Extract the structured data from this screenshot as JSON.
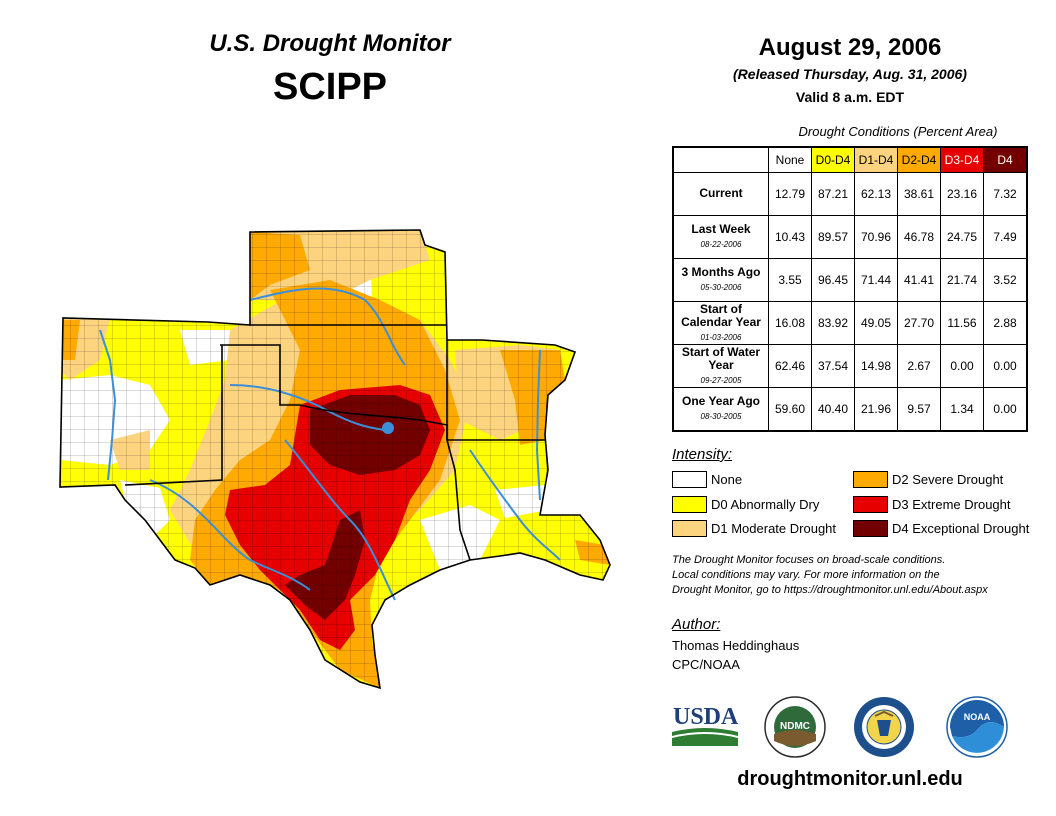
{
  "header": {
    "title": "U.S. Drought Monitor",
    "region": "SCIPP",
    "date": "August 29, 2006",
    "released": "(Released Thursday, Aug. 31, 2006)",
    "valid": "Valid 8 a.m. EDT"
  },
  "table": {
    "caption": "Drought Conditions (Percent Area)",
    "columns": [
      {
        "label": "None",
        "bg": "#ffffff",
        "fg": "#000000"
      },
      {
        "label": "D0-D4",
        "bg": "#ffff00",
        "fg": "#000000"
      },
      {
        "label": "D1-D4",
        "bg": "#fcd37f",
        "fg": "#000000"
      },
      {
        "label": "D2-D4",
        "bg": "#ffaa00",
        "fg": "#000000"
      },
      {
        "label": "D3-D4",
        "bg": "#e60000",
        "fg": "#ffffff"
      },
      {
        "label": "D4",
        "bg": "#730000",
        "fg": "#ffffff"
      }
    ],
    "rows": [
      {
        "label": "Current",
        "sub": "",
        "values": [
          "12.79",
          "87.21",
          "62.13",
          "38.61",
          "23.16",
          "7.32"
        ]
      },
      {
        "label": "Last Week",
        "sub": "08-22-2006",
        "values": [
          "10.43",
          "89.57",
          "70.96",
          "46.78",
          "24.75",
          "7.49"
        ]
      },
      {
        "label": "3 Months Ago",
        "sub": "05-30-2006",
        "values": [
          "3.55",
          "96.45",
          "71.44",
          "41.41",
          "21.74",
          "3.52"
        ]
      },
      {
        "label": "Start of Calendar Year",
        "sub": "01-03-2006",
        "values": [
          "16.08",
          "83.92",
          "49.05",
          "27.70",
          "11.56",
          "2.88"
        ]
      },
      {
        "label": "Start of Water Year",
        "sub": "09-27-2005",
        "values": [
          "62.46",
          "37.54",
          "14.98",
          "2.67",
          "0.00",
          "0.00"
        ]
      },
      {
        "label": "One Year Ago",
        "sub": "08-30-2005",
        "values": [
          "59.60",
          "40.40",
          "21.96",
          "9.57",
          "1.34",
          "0.00"
        ]
      }
    ]
  },
  "legend": {
    "title": "Intensity:",
    "items": [
      {
        "label": "None",
        "color": "#ffffff"
      },
      {
        "label": "D0 Abnormally Dry",
        "color": "#ffff00"
      },
      {
        "label": "D1 Moderate Drought",
        "color": "#fcd37f"
      },
      {
        "label": "D2 Severe Drought",
        "color": "#ffaa00"
      },
      {
        "label": "D3 Extreme Drought",
        "color": "#e60000"
      },
      {
        "label": "D4 Exceptional Drought",
        "color": "#730000"
      }
    ]
  },
  "note": {
    "line1": "The Drought Monitor focuses on broad-scale conditions.",
    "line2": "Local conditions may vary. For more information on the",
    "line3": "Drought Monitor, go to https://droughtmonitor.unl.edu/About.aspx"
  },
  "author": {
    "label": "Author:",
    "name": "Thomas Heddinghaus",
    "org": "CPC/NOAA"
  },
  "logos": {
    "usda": "USDA",
    "ndmc": "NDMC",
    "noaa": "NOAA"
  },
  "footer": {
    "website": "droughtmonitor.unl.edu"
  },
  "colors": {
    "none": "#ffffff",
    "d0": "#ffff00",
    "d1": "#fcd37f",
    "d2": "#ffaa00",
    "d3": "#e60000",
    "d4": "#730000",
    "river": "#3a8fd8"
  }
}
